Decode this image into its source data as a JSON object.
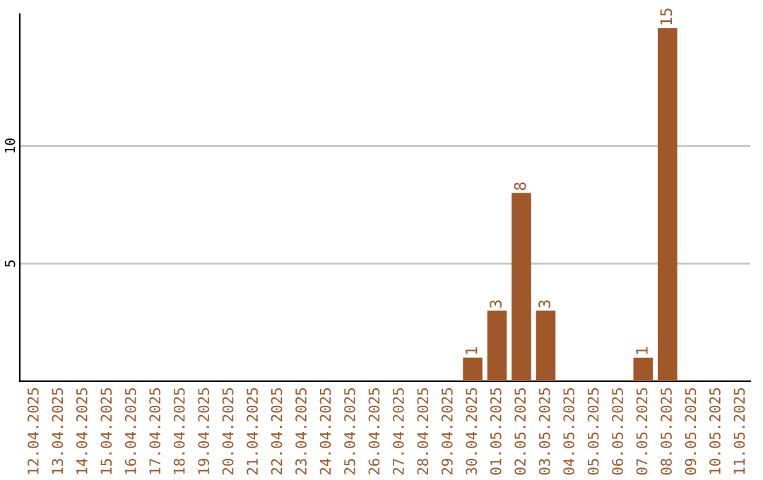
{
  "chart_data": {
    "type": "bar",
    "categories": [
      "12.04.2025",
      "13.04.2025",
      "14.04.2025",
      "15.04.2025",
      "16.04.2025",
      "17.04.2025",
      "18.04.2025",
      "19.04.2025",
      "20.04.2025",
      "21.04.2025",
      "22.04.2025",
      "23.04.2025",
      "24.04.2025",
      "25.04.2025",
      "26.04.2025",
      "27.04.2025",
      "28.04.2025",
      "29.04.2025",
      "30.04.2025",
      "01.05.2025",
      "02.05.2025",
      "03.05.2025",
      "04.05.2025",
      "05.05.2025",
      "06.05.2025",
      "07.05.2025",
      "08.05.2025",
      "09.05.2025",
      "10.05.2025",
      "11.05.2025"
    ],
    "values": [
      0,
      0,
      0,
      0,
      0,
      0,
      0,
      0,
      0,
      0,
      0,
      0,
      0,
      0,
      0,
      0,
      0,
      0,
      1,
      3,
      8,
      3,
      0,
      0,
      0,
      1,
      15,
      0,
      0,
      0
    ],
    "value_labels": [
      null,
      null,
      null,
      null,
      null,
      null,
      null,
      null,
      null,
      null,
      null,
      null,
      null,
      null,
      null,
      null,
      null,
      null,
      "1",
      "3",
      "8",
      "3",
      null,
      null,
      null,
      "1",
      "15",
      null,
      null,
      null
    ],
    "color": "#a0582a",
    "ylim": [
      0,
      15.6
    ],
    "yticks": [
      5,
      10
    ],
    "grid": "y"
  }
}
